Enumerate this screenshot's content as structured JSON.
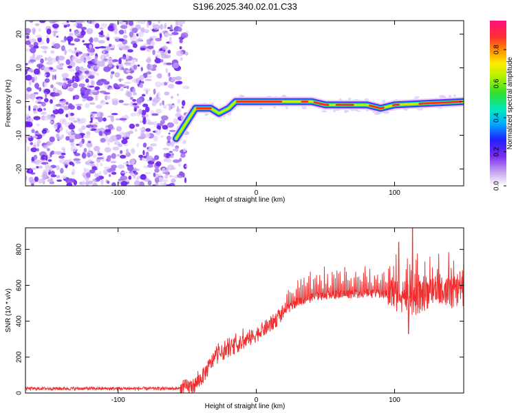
{
  "title": "S196.2025.340.02.01.C33",
  "chart_data": [
    {
      "type": "heatmap",
      "xlabel": "Height of straight line (km)",
      "ylabel": "Frequency (Hz)",
      "xlim": [
        -167,
        150
      ],
      "ylim": [
        -25,
        24
      ],
      "xticks": [
        "-100",
        "0",
        "100"
      ],
      "yticks": [
        "-20",
        "-10",
        "0",
        "10",
        "20"
      ],
      "colorbar": {
        "label": "Normalized spectral amplitude",
        "ticks": [
          "0.0",
          "0.2",
          "0.4",
          "0.6",
          "0.8"
        ],
        "range": [
          0,
          0.97
        ]
      },
      "noise_region_x": [
        -167,
        -55
      ],
      "ridge": [
        {
          "x": -58,
          "y": -11
        },
        {
          "x": -44,
          "y": -2
        },
        {
          "x": -33,
          "y": -2
        },
        {
          "x": -27,
          "y": -3.5
        },
        {
          "x": -20,
          "y": -2
        },
        {
          "x": -15,
          "y": 0
        },
        {
          "x": 40,
          "y": 0
        },
        {
          "x": 50,
          "y": -1
        },
        {
          "x": 80,
          "y": -1
        },
        {
          "x": 90,
          "y": -2
        },
        {
          "x": 100,
          "y": -1
        },
        {
          "x": 150,
          "y": 0
        }
      ]
    },
    {
      "type": "line",
      "xlabel": "Height of straight line (km)",
      "ylabel": "SNR (10 * v/v)",
      "xlim": [
        -167,
        150
      ],
      "ylim": [
        0,
        920
      ],
      "xticks": [
        "-100",
        "0",
        "100"
      ],
      "yticks": [
        "0",
        "200",
        "400",
        "600",
        "800"
      ],
      "series_color": "#f03030",
      "envelope": [
        {
          "x": -167,
          "y": 25
        },
        {
          "x": -55,
          "y": 25
        },
        {
          "x": -45,
          "y": 40
        },
        {
          "x": -38,
          "y": 100
        },
        {
          "x": -30,
          "y": 200
        },
        {
          "x": -20,
          "y": 245
        },
        {
          "x": -5,
          "y": 300
        },
        {
          "x": 10,
          "y": 380
        },
        {
          "x": 20,
          "y": 450
        },
        {
          "x": 30,
          "y": 510
        },
        {
          "x": 45,
          "y": 540
        },
        {
          "x": 60,
          "y": 550
        },
        {
          "x": 80,
          "y": 555
        },
        {
          "x": 100,
          "y": 545
        },
        {
          "x": 115,
          "y": 520
        },
        {
          "x": 125,
          "y": 560
        },
        {
          "x": 140,
          "y": 560
        },
        {
          "x": 150,
          "y": 560
        }
      ],
      "peaks": [
        {
          "x": 113,
          "y": 920
        },
        {
          "x": 103,
          "y": 840
        },
        {
          "x": 110,
          "y": 330
        }
      ]
    }
  ]
}
